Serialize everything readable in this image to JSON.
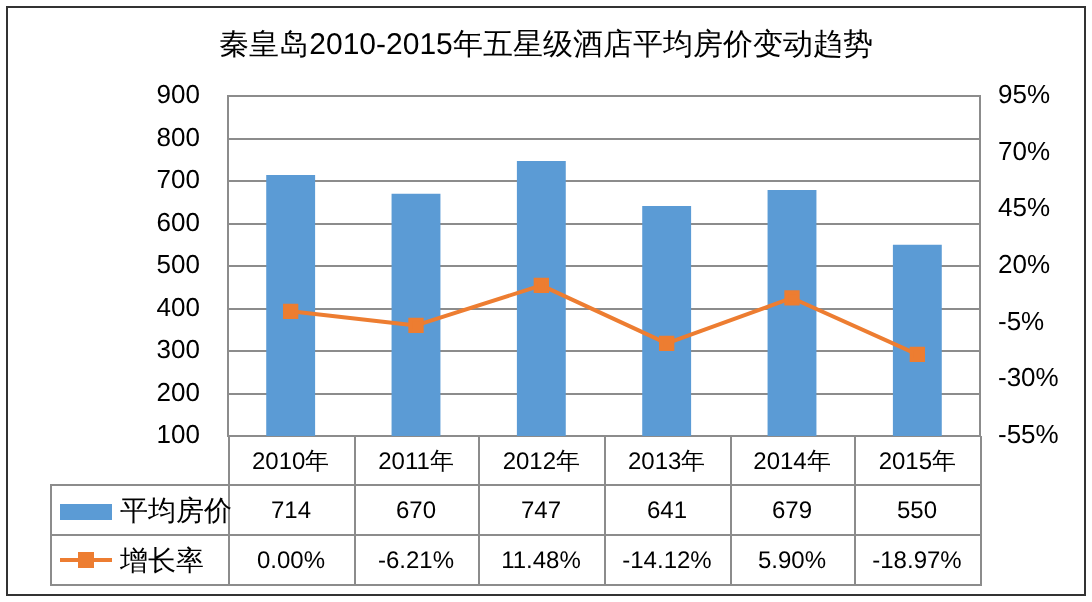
{
  "chart_data": {
    "type": "bar",
    "title": "秦皇岛2010-2015年五星级酒店平均房价变动趋势",
    "categories": [
      "2010年",
      "2011年",
      "2012年",
      "2013年",
      "2014年",
      "2015年"
    ],
    "series": [
      {
        "name": "平均房价",
        "color": "#5b9bd5",
        "values": [
          714,
          670,
          747,
          641,
          679,
          550
        ]
      },
      {
        "name": "增长率",
        "type": "line",
        "axis": "y2",
        "color": "#ed7d31",
        "values": [
          0.0,
          -6.21,
          11.48,
          -14.12,
          5.9,
          -18.97
        ],
        "value_labels": [
          "0.00%",
          "-6.21%",
          "11.48%",
          "-14.12%",
          "5.90%",
          "-18.97%"
        ]
      }
    ],
    "data_labels": true,
    "ylim": [
      100,
      900
    ],
    "yticks": [
      100,
      200,
      300,
      400,
      500,
      600,
      700,
      800,
      900
    ],
    "y2lim": [
      -55,
      95
    ],
    "y2ticks": [
      {
        "value": -55,
        "label": "-55%"
      },
      {
        "value": -30,
        "label": "-30%"
      },
      {
        "value": -5,
        "label": "-5%"
      },
      {
        "value": 20,
        "label": "20%"
      },
      {
        "value": 45,
        "label": "45%"
      },
      {
        "value": 70,
        "label": "70%"
      },
      {
        "value": 95,
        "label": "95%"
      }
    ],
    "grid": "y",
    "legend": "bottom",
    "marker": "square",
    "line_style": "solid"
  }
}
